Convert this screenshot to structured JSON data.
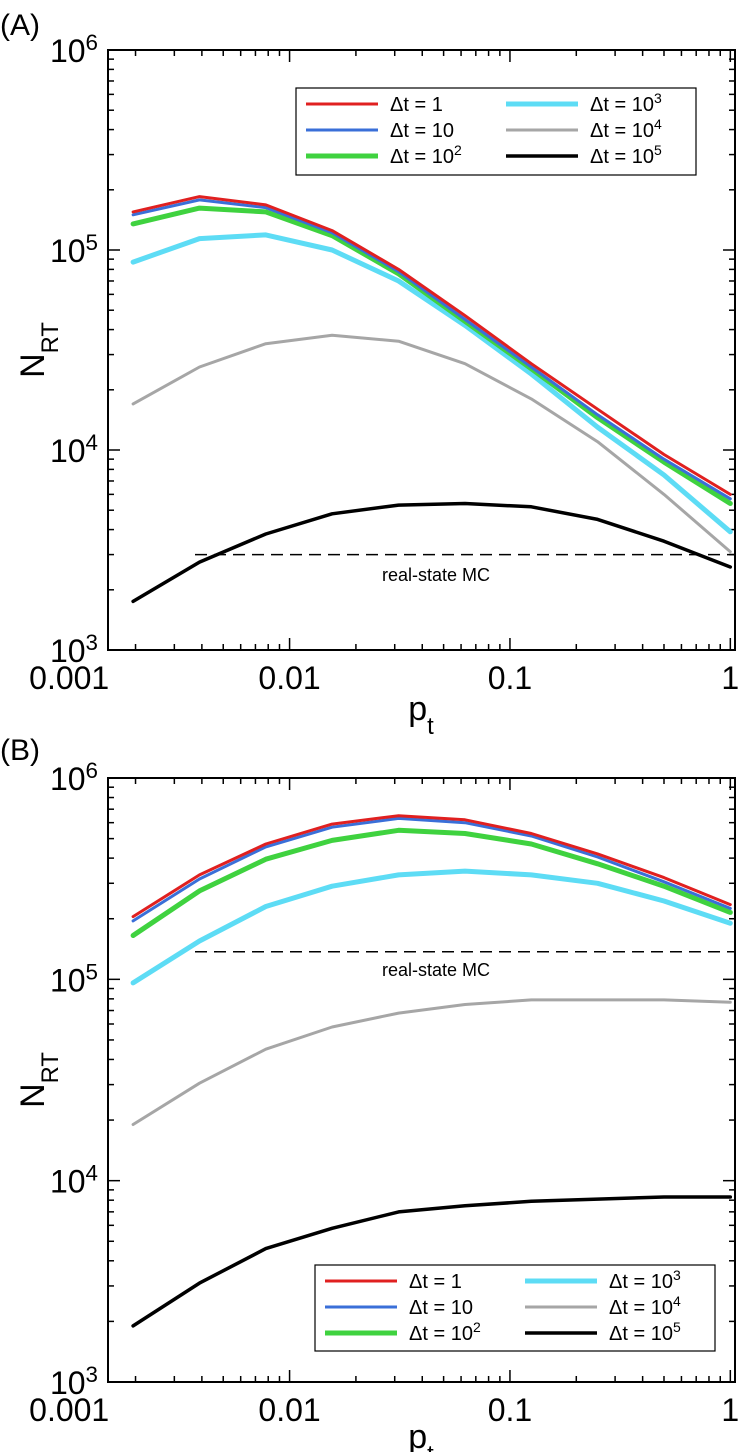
{
  "chart_data": [
    {
      "panel_label": "(A)",
      "type": "line",
      "title": "",
      "xlabel": "p",
      "xlabel_sub": "t",
      "ylabel": "N",
      "ylabel_sub": "RT",
      "xscale": "log",
      "yscale": "log",
      "xlim": [
        0.0015,
        1.05
      ],
      "ylim": [
        1000,
        1000000
      ],
      "x_ticks": [
        {
          "value": 0.001,
          "label": "0.001"
        },
        {
          "value": 0.01,
          "label": "0.01"
        },
        {
          "value": 0.1,
          "label": "0.1"
        },
        {
          "value": 1,
          "label": "1"
        }
      ],
      "y_ticks": [
        {
          "value": 1000,
          "base": "10",
          "exp": "3"
        },
        {
          "value": 10000,
          "base": "10",
          "exp": "4"
        },
        {
          "value": 100000,
          "base": "10",
          "exp": "5"
        },
        {
          "value": 1000000,
          "base": "10",
          "exp": "6"
        }
      ],
      "x": [
        0.00195,
        0.0039,
        0.0078,
        0.0156,
        0.03125,
        0.0625,
        0.125,
        0.25,
        0.5,
        1
      ],
      "series": [
        {
          "name": "Δt = 1",
          "exp": "",
          "color": "#e02020",
          "values": [
            155000,
            185000,
            168000,
            125000,
            80000,
            47000,
            27000,
            16000,
            9500,
            6000
          ]
        },
        {
          "name": "Δt = 10",
          "exp": "",
          "color": "#3a6fd8",
          "values": [
            150000,
            178000,
            163000,
            122000,
            78000,
            45000,
            26000,
            15000,
            9000,
            5700
          ]
        },
        {
          "name": "Δt = 10",
          "exp": "2",
          "color": "#3fd23f",
          "values": [
            135000,
            162000,
            155000,
            118000,
            76000,
            44000,
            25500,
            14500,
            8700,
            5400
          ]
        },
        {
          "name": "Δt = 10",
          "exp": "3",
          "color": "#5ddcf5",
          "values": [
            87000,
            114000,
            119000,
            100000,
            70000,
            42000,
            24000,
            13000,
            7500,
            3900
          ]
        },
        {
          "name": "Δt = 10",
          "exp": "4",
          "color": "#a6a6a6",
          "values": [
            17000,
            26000,
            34000,
            37500,
            35000,
            27000,
            18000,
            11000,
            6000,
            3100
          ]
        },
        {
          "name": "Δt = 10",
          "exp": "5",
          "color": "#000000",
          "values": [
            1750,
            2750,
            3800,
            4800,
            5300,
            5400,
            5200,
            4500,
            3500,
            2600
          ]
        }
      ],
      "reference": {
        "label": "real-state MC",
        "value": 3000
      },
      "legend_position": "top-right"
    },
    {
      "panel_label": "(B)",
      "type": "line",
      "title": "",
      "xlabel": "p",
      "xlabel_sub": "t",
      "ylabel": "N",
      "ylabel_sub": "RT",
      "xscale": "log",
      "yscale": "log",
      "xlim": [
        0.0015,
        1.05
      ],
      "ylim": [
        1000,
        1000000
      ],
      "x_ticks": [
        {
          "value": 0.001,
          "label": "0.001"
        },
        {
          "value": 0.01,
          "label": "0.01"
        },
        {
          "value": 0.1,
          "label": "0.1"
        },
        {
          "value": 1,
          "label": "1"
        }
      ],
      "y_ticks": [
        {
          "value": 1000,
          "base": "10",
          "exp": "3"
        },
        {
          "value": 10000,
          "base": "10",
          "exp": "4"
        },
        {
          "value": 100000,
          "base": "10",
          "exp": "5"
        },
        {
          "value": 1000000,
          "base": "10",
          "exp": "6"
        }
      ],
      "x": [
        0.00195,
        0.0039,
        0.0078,
        0.0156,
        0.03125,
        0.0625,
        0.125,
        0.25,
        0.5,
        1
      ],
      "series": [
        {
          "name": "Δt = 1",
          "exp": "",
          "color": "#e02020",
          "values": [
            205000,
            330000,
            470000,
            590000,
            650000,
            620000,
            530000,
            420000,
            320000,
            235000
          ]
        },
        {
          "name": "Δt = 10",
          "exp": "",
          "color": "#3a6fd8",
          "values": [
            195000,
            315000,
            455000,
            570000,
            630000,
            600000,
            515000,
            405000,
            305000,
            225000
          ]
        },
        {
          "name": "Δt = 10",
          "exp": "2",
          "color": "#3fd23f",
          "values": [
            165000,
            275000,
            395000,
            490000,
            550000,
            530000,
            470000,
            375000,
            290000,
            215000
          ]
        },
        {
          "name": "Δt = 10",
          "exp": "3",
          "color": "#5ddcf5",
          "values": [
            96000,
            155000,
            230000,
            290000,
            330000,
            345000,
            330000,
            300000,
            245000,
            190000
          ]
        },
        {
          "name": "Δt = 10",
          "exp": "4",
          "color": "#a6a6a6",
          "values": [
            19000,
            30500,
            45000,
            58000,
            68000,
            75000,
            79000,
            79000,
            79000,
            77000
          ]
        },
        {
          "name": "Δt = 10",
          "exp": "5",
          "color": "#000000",
          "values": [
            1900,
            3100,
            4600,
            5800,
            7000,
            7500,
            7900,
            8100,
            8300,
            8300
          ]
        }
      ],
      "reference": {
        "label": "real-state MC",
        "value": 137000
      },
      "legend_position": "bottom-right"
    }
  ]
}
